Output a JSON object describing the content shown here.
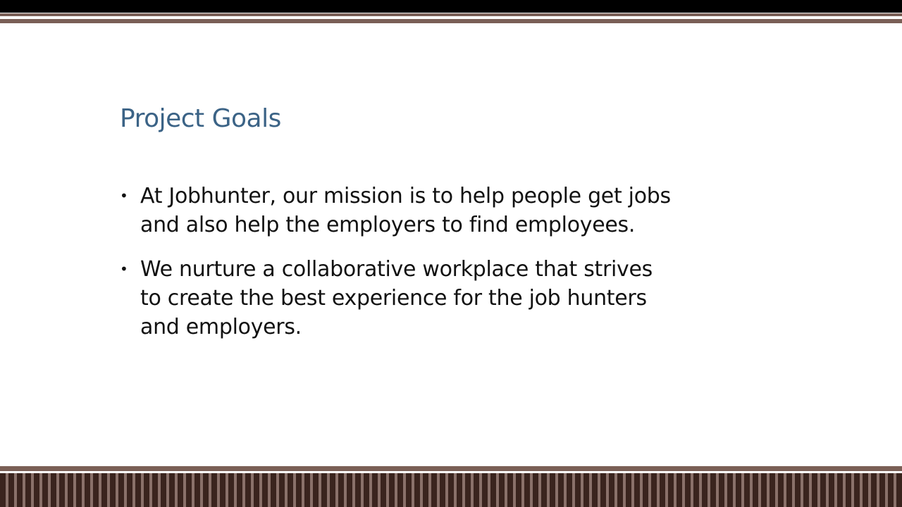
{
  "slide": {
    "title": "Project Goals",
    "bullets": [
      {
        "lines": [
          "At Jobhunter, our mission is to help people get jobs",
          "and also help the employers to find employees."
        ]
      },
      {
        "lines": [
          "We nurture a collaborative workplace that strives",
          "to create the best experience for the job hunters",
          "and employers."
        ]
      }
    ],
    "bullet_glyph": "•"
  },
  "colors": {
    "title": "#3b6386",
    "body_text": "#111111",
    "band_brown": "#7a5f56",
    "band_dark": "#3a241e"
  }
}
